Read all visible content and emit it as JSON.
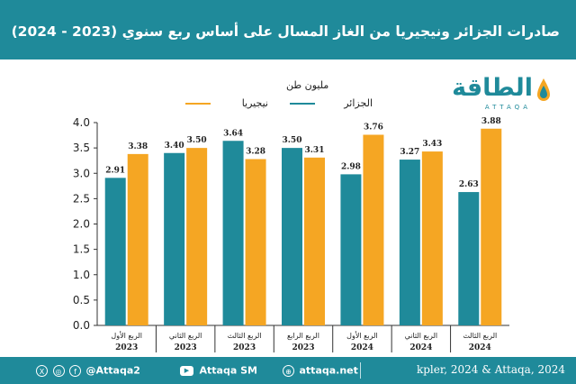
{
  "header": {
    "title": "صادرات الجزائر ونيجيريا من الغاز المسال على أساس ربع سنوي (2023 - 2024)"
  },
  "logo": {
    "name_ar": "الطاقة",
    "name_en": "ATTAQA"
  },
  "chart_data": {
    "type": "bar",
    "unit_label": "مليون طن",
    "categories": [
      [
        "الربع الأول",
        "2023"
      ],
      [
        "الربع الثاني",
        "2023"
      ],
      [
        "الربع الثالث",
        "2023"
      ],
      [
        "الربع الرابع",
        "2023"
      ],
      [
        "الربع الأول",
        "2024"
      ],
      [
        "الربع الثاني",
        "2024"
      ],
      [
        "الربع الثالث",
        "2024"
      ]
    ],
    "series": [
      {
        "name": "الجزائر",
        "color": "#1f8a9a",
        "values": [
          2.91,
          3.4,
          3.64,
          3.5,
          2.98,
          3.27,
          2.63
        ]
      },
      {
        "name": "نيجيريا",
        "color": "#f5a623",
        "values": [
          3.38,
          3.5,
          3.28,
          3.31,
          3.76,
          3.43,
          3.88
        ]
      }
    ],
    "value_labels": [
      [
        "2.91",
        "3.40",
        "3.64",
        "3.50",
        "2.98",
        "3.27",
        "2.63"
      ],
      [
        "3.38",
        "3.50",
        "3.28",
        "3.31",
        "3.76",
        "3.43",
        "3.88"
      ]
    ],
    "ylim": [
      0,
      4.0
    ],
    "yticks": [
      "0.0",
      "0.5",
      "1.0",
      "1.5",
      "2.0",
      "2.5",
      "3.0",
      "3.5",
      "4.0"
    ],
    "ytick_values": [
      0,
      0.5,
      1.0,
      1.5,
      2.0,
      2.5,
      3.0,
      3.5,
      4.0
    ],
    "grid": false,
    "legend_position": "top-center"
  },
  "footer": {
    "social_handle": "@Attaqa2",
    "youtube": "Attaqa SM",
    "website": "attaqa.net",
    "source": "kpler, 2024 & Attaqa, 2024",
    "icons": [
      "x-icon",
      "instagram-icon",
      "facebook-icon",
      "youtube-icon",
      "web-icon"
    ]
  }
}
